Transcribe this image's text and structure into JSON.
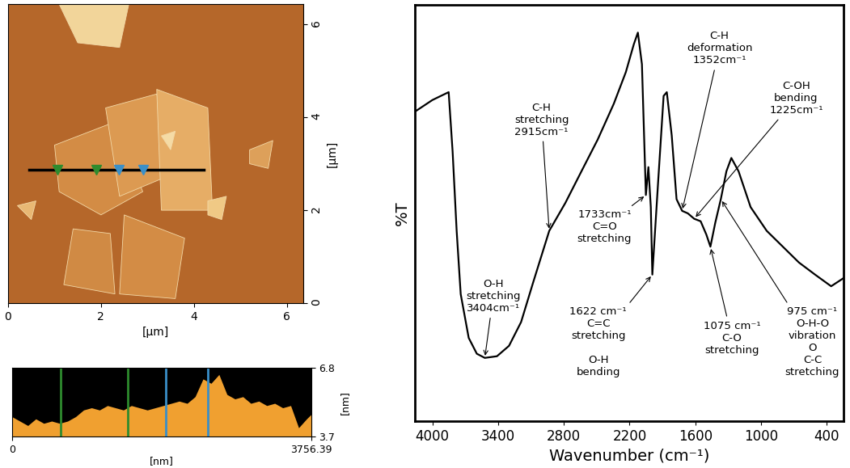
{
  "chart_data": [
    {
      "type": "image",
      "xlim": [
        0,
        6.35
      ],
      "ylim": [
        0,
        6.43
      ],
      "xticks": [
        0,
        2,
        4,
        6
      ],
      "yticks": [
        0,
        2,
        4,
        6
      ],
      "x_label": "[µm]",
      "y_label": "[µm]",
      "profile_line": {
        "y": 2.87,
        "x_start": 0.45
      }
    },
    {
      "type": "area",
      "x": [
        0,
        100,
        200,
        300,
        400,
        500,
        600,
        700,
        800,
        900,
        1000,
        1100,
        1200,
        1300,
        1400,
        1500,
        1600,
        1700,
        1800,
        1900,
        2000,
        2100,
        2200,
        2300,
        2400,
        2500,
        2600,
        2700,
        2800,
        2900,
        3000,
        3100,
        3200,
        3300,
        3400,
        3500,
        3600,
        3700,
        3756.39
      ],
      "values": [
        4.6,
        4.4,
        4.2,
        4.5,
        4.3,
        4.4,
        4.3,
        4.4,
        4.6,
        4.9,
        5.0,
        4.9,
        5.1,
        5.0,
        4.9,
        5.1,
        5.0,
        4.9,
        5.0,
        5.1,
        5.2,
        5.3,
        5.2,
        5.5,
        6.3,
        6.1,
        6.5,
        5.6,
        5.4,
        5.5,
        5.2,
        5.3,
        5.1,
        5.2,
        5.0,
        5.1,
        4.1,
        4.5,
        4.7
      ],
      "color": "#f0a030",
      "xlim": [
        0,
        3756.39
      ],
      "xticks": [
        0,
        3756.39
      ],
      "ylim": [
        3.7,
        6.8
      ],
      "yticks": [
        3.7,
        6.8
      ],
      "x_label": "[nm]",
      "y_label": "[nm]",
      "cursors": [
        {
          "x": 609,
          "color": "#2e8b2e"
        },
        {
          "x": 1452,
          "color": "#2e8b2e"
        },
        {
          "x": 1929,
          "color": "#3a8fc8"
        },
        {
          "x": 2457,
          "color": "#3a8fc8"
        }
      ]
    },
    {
      "type": "line",
      "x": [
        4160,
        4000,
        3851,
        3815,
        3778,
        3741,
        3668,
        3594,
        3521,
        3410,
        3300,
        3190,
        3080,
        2933,
        2786,
        2639,
        2491,
        2344,
        2234,
        2161,
        2124,
        2087,
        2051,
        2028,
        2006,
        1992,
        1940,
        1889,
        1860,
        1815,
        1771,
        1720,
        1668,
        1610,
        1551,
        1499,
        1462,
        1418,
        1367,
        1316,
        1271,
        1205,
        1095,
        948,
        801,
        654,
        507,
        360,
        250
      ],
      "values": [
        74.3,
        77.1,
        79.0,
        64.8,
        45.7,
        30.5,
        20.0,
        16.2,
        15.2,
        15.6,
        18.1,
        23.8,
        33.3,
        45.7,
        52.4,
        60.0,
        67.6,
        76.2,
        83.8,
        90.5,
        93.3,
        85.7,
        54.3,
        61.0,
        51.4,
        35.2,
        57.1,
        78.1,
        79.0,
        68.6,
        53.3,
        50.5,
        49.9,
        48.6,
        48.0,
        44.8,
        41.9,
        47.6,
        53.3,
        60.0,
        63.2,
        60.0,
        51.4,
        45.7,
        41.9,
        38.1,
        35.2,
        32.4,
        34.3
      ],
      "color": "#000000",
      "xlim": [
        4160,
        250
      ],
      "xticks": [
        4000,
        3400,
        2800,
        2200,
        1600,
        1000,
        400
      ],
      "ylim": [
        0,
        100
      ],
      "yticks": [],
      "tick_labels": "x",
      "x_label": "Wavenumber (cm⁻¹)",
      "y_label": "%T",
      "annotations": [
        {
          "text": "O-H\nstretching\n3404cm⁻¹",
          "x": 3521
        },
        {
          "text": "C-H\nstretching\n2915cm⁻¹",
          "x": 2933
        },
        {
          "text": "1733cm⁻¹\nC=O\nstretching",
          "x": 2051
        },
        {
          "text": "1622 cm⁻¹\nC=C\nstretching\n\nO-H\nbending",
          "x": 1992
        },
        {
          "text": "C-H\ndeformation\n1352cm⁻¹",
          "x": 1720
        },
        {
          "text": "C-OH\nbending\n1225cm⁻¹",
          "x": 1610
        },
        {
          "text": "1075 cm⁻¹\nC-O\nstretching",
          "x": 1462
        },
        {
          "text": "975 cm⁻¹\nO-H-O\nvibration\nO\nC-C\nstretching",
          "x": 1367
        }
      ]
    }
  ]
}
